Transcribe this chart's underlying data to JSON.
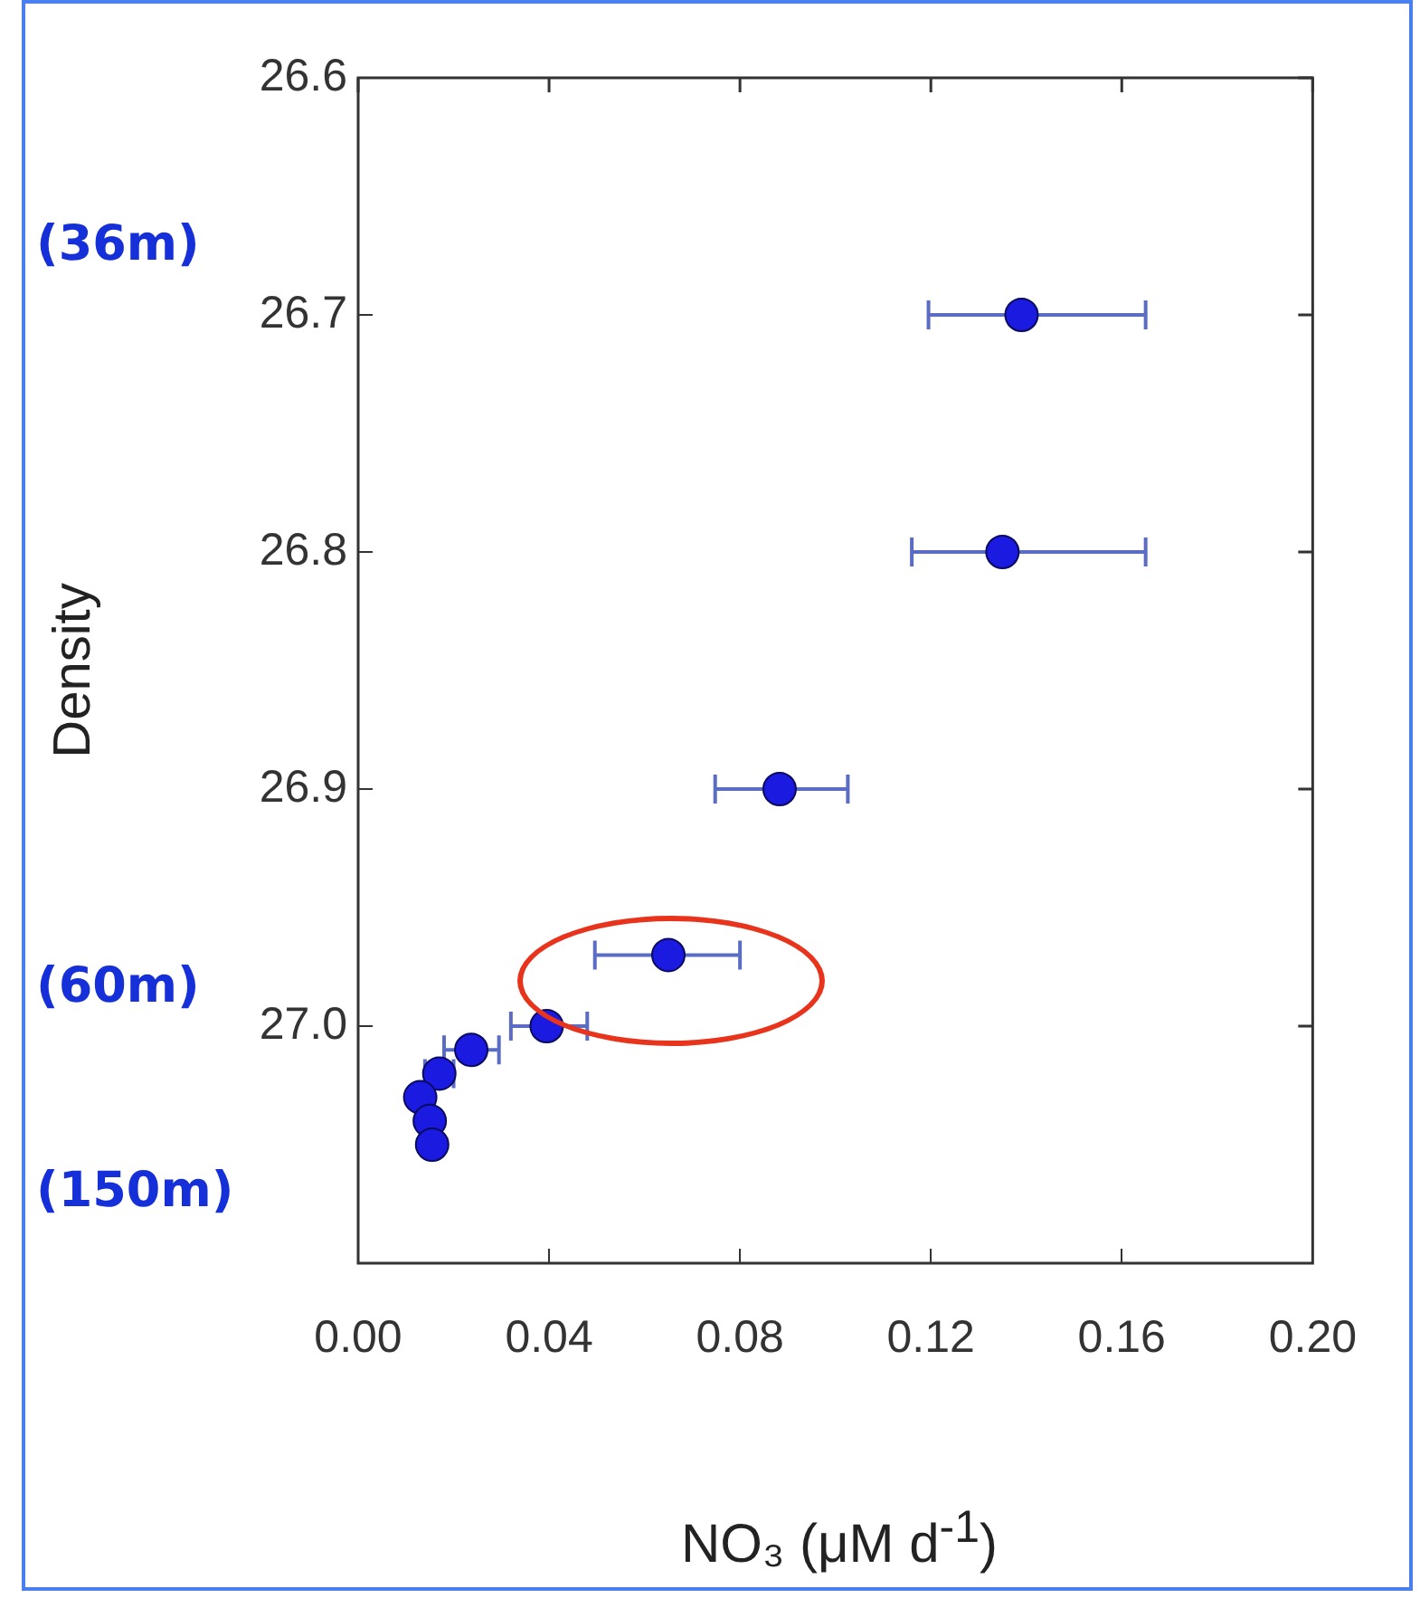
{
  "chart_data": {
    "type": "scatter",
    "xlabel": "NO₃ (μM d$^{-1}$)",
    "ylabel": "Density",
    "series": [
      {
        "color": "#1a1ae0",
        "x": [
          0.139,
          0.135,
          0.0883,
          0.065,
          0.0395,
          0.0237,
          0.017,
          0.013,
          0.015,
          0.0155
        ],
        "values": [
          26.7,
          26.8,
          26.9,
          26.97,
          27.0,
          27.01,
          27.02,
          27.03,
          27.04,
          27.05
        ],
        "xerrors": [
          [
            0.1195,
            0.165
          ],
          [
            0.116,
            0.165
          ],
          [
            0.0748,
            0.1026
          ],
          [
            0.0496,
            0.08
          ],
          [
            0.032,
            0.048
          ],
          [
            0.018,
            0.0295
          ],
          [
            0.014,
            0.02
          ],
          null,
          null,
          null
        ]
      }
    ],
    "xlim": [
      0,
      0.2
    ],
    "xticks": [
      {
        "value": 0,
        "label": "0.00"
      },
      {
        "value": 0.04,
        "label": "0.04"
      },
      {
        "value": 0.08,
        "label": "0.08"
      },
      {
        "value": 0.12,
        "label": "0.12"
      },
      {
        "value": 0.16,
        "label": "0.16"
      },
      {
        "value": 0.2,
        "label": "0.20"
      }
    ],
    "ylim": [
      27.1,
      26.6
    ],
    "yticks": [
      26.6,
      26.7,
      26.8,
      26.9,
      {
        "value": 27.0,
        "label": "27.0"
      }
    ],
    "marker": "circle",
    "grid": false,
    "legend": false,
    "annotations": [
      "(36m)",
      "(60m)",
      "(150m)"
    ]
  }
}
